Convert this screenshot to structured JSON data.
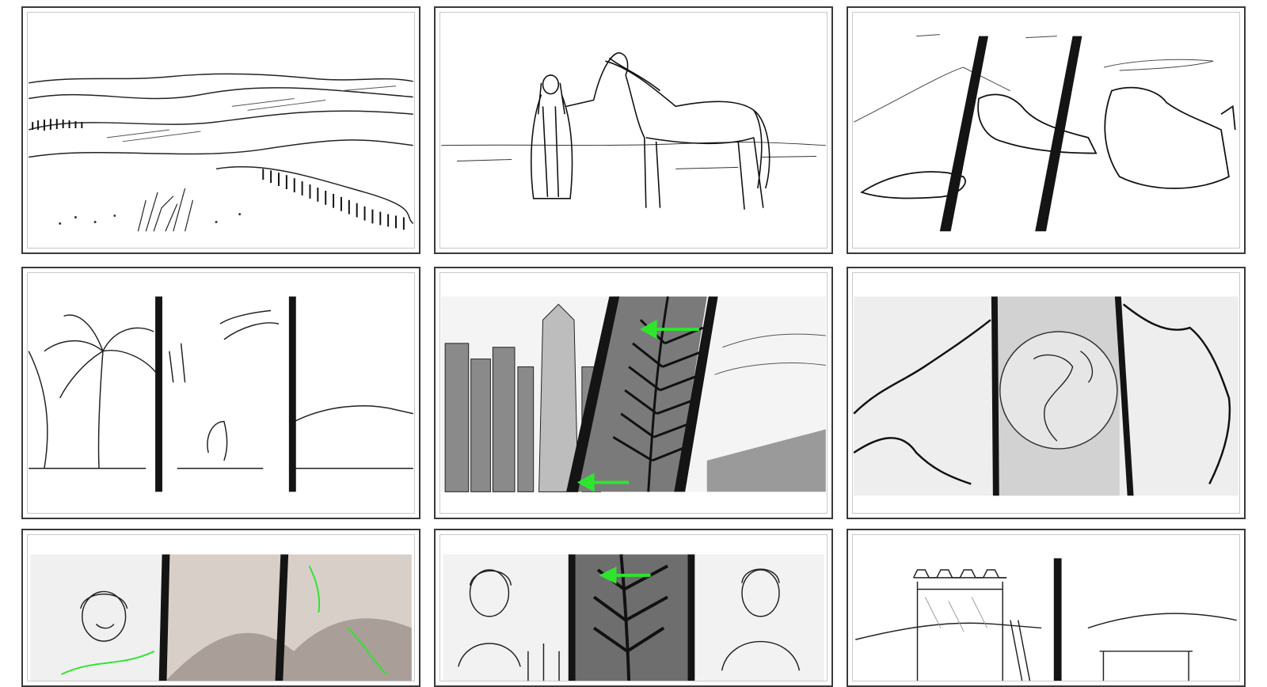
{
  "storyboard": {
    "panels": [
      {
        "scene": "desert-dunes"
      },
      {
        "scene": "man-with-horse"
      },
      {
        "scene": "hands-reaching"
      },
      {
        "scene": "palm-tree-split"
      },
      {
        "scene": "city-palm-frond",
        "accent": "#2ee52e"
      },
      {
        "scene": "globe-map"
      },
      {
        "scene": "woman-hills",
        "accent": "#2ee52e"
      },
      {
        "scene": "two-men-palm",
        "accent": "#2ee52e"
      },
      {
        "scene": "watchtower"
      }
    ]
  }
}
